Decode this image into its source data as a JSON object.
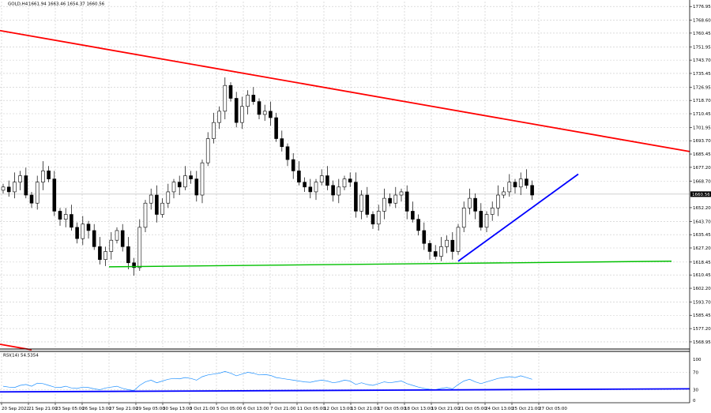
{
  "header": {
    "symbol": "GOLD,H4",
    "ohlc": "1661.94 1663.46 1654.37 1660.56"
  },
  "chart_data": [
    {
      "type": "candlestick",
      "symbol": "GOLD",
      "timeframe": "H4",
      "ylim": [
        1565.0,
        1780.0
      ],
      "y_ticks": [
        "1776.95",
        "1768.60",
        "1760.45",
        "1751.95",
        "1743.70",
        "1735.45",
        "1726.95",
        "1718.70",
        "1710.45",
        "1701.95",
        "1693.70",
        "1685.45",
        "1677.20",
        "1668.70",
        "1660.56",
        "1652.20",
        "1643.70",
        "1635.45",
        "1627.20",
        "1618.45",
        "1610.45",
        "1602.20",
        "1593.70",
        "1585.45",
        "1577.20",
        "1568.95"
      ],
      "last_price": "1660.56",
      "x_ticks": [
        "20 Sep 2022",
        "21 Sep 21:00",
        "23 Sep 05:00",
        "26 Sep 13:00",
        "27 Sep 21:00",
        "29 Sep 05:00",
        "30 Sep 13:00",
        "3 Oct 21:00",
        "5 Oct 05:00",
        "6 Oct 13:00",
        "7 Oct 21:00",
        "11 Oct 05:00",
        "12 Oct 13:00",
        "13 Oct 21:00",
        "17 Oct 05:00",
        "18 Oct 13:00",
        "19 Oct 21:00",
        "21 Oct 05:00",
        "24 Oct 13:00",
        "25 Oct 21:00",
        "27 Oct 05:00"
      ],
      "closes": [
        1665,
        1662,
        1668,
        1672,
        1660,
        1655,
        1668,
        1675,
        1670,
        1650,
        1645,
        1648,
        1640,
        1633,
        1642,
        1638,
        1628,
        1620,
        1625,
        1632,
        1638,
        1628,
        1618,
        1615,
        1640,
        1655,
        1660,
        1648,
        1655,
        1662,
        1668,
        1665,
        1672,
        1670,
        1660,
        1680,
        1695,
        1705,
        1712,
        1728,
        1720,
        1705,
        1715,
        1722,
        1718,
        1710,
        1712,
        1708,
        1695,
        1690,
        1682,
        1675,
        1668,
        1665,
        1662,
        1668,
        1672,
        1666,
        1660,
        1665,
        1670,
        1668,
        1650,
        1660,
        1648,
        1642,
        1650,
        1658,
        1655,
        1660,
        1662,
        1650,
        1645,
        1638,
        1630,
        1625,
        1622,
        1628,
        1632,
        1625,
        1640,
        1652,
        1658,
        1650,
        1640,
        1648,
        1652,
        1660,
        1662,
        1668,
        1665,
        1670,
        1666,
        1660
      ],
      "trendlines": [
        {
          "color": "#ff0000",
          "start": [
            "20 Sep 2022",
            1762.0
          ],
          "end": [
            "27 Oct 09:00",
            1687.0
          ]
        },
        {
          "color": "#00c000",
          "start": [
            "27 Sep 21:00",
            1615.5
          ],
          "end": [
            "27 Oct 09:00",
            1619.0
          ]
        },
        {
          "color": "#0000ff",
          "start": [
            "21 Oct 05:00",
            1619.0
          ],
          "end": [
            "27 Oct 09:00",
            1673.0
          ]
        }
      ]
    },
    {
      "type": "line",
      "title": "RSI(14) 54.5354",
      "ylim": [
        0,
        100
      ],
      "y_ticks": [
        "100",
        "70",
        "30",
        "0"
      ],
      "values": [
        38,
        36,
        35,
        40,
        42,
        38,
        45,
        44,
        40,
        36,
        35,
        38,
        34,
        33,
        36,
        35,
        32,
        30,
        34,
        36,
        38,
        33,
        30,
        28,
        40,
        48,
        52,
        46,
        50,
        54,
        56,
        55,
        58,
        56,
        52,
        60,
        64,
        66,
        68,
        72,
        68,
        62,
        66,
        70,
        68,
        64,
        65,
        63,
        58,
        56,
        54,
        52,
        50,
        48,
        47,
        50,
        52,
        50,
        46,
        48,
        52,
        50,
        42,
        46,
        42,
        40,
        44,
        48,
        46,
        48,
        50,
        44,
        40,
        36,
        33,
        31,
        30,
        33,
        35,
        32,
        42,
        50,
        54,
        48,
        44,
        48,
        52,
        56,
        58,
        60,
        58,
        62,
        58,
        54
      ],
      "trendlines": [
        {
          "color": "#0000ff",
          "start_value": 25.0,
          "end_value": 32.0
        }
      ]
    }
  ]
}
